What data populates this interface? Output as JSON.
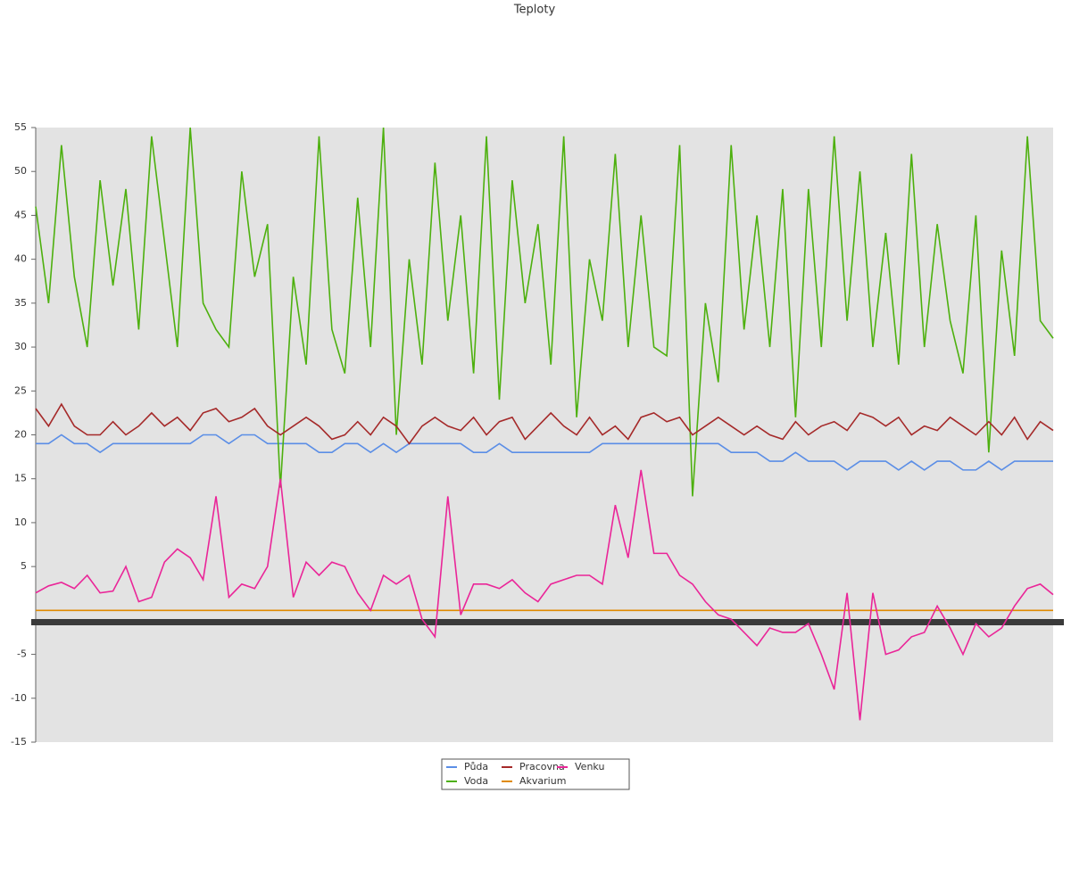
{
  "chart_data": {
    "type": "line",
    "title": "Teploty",
    "ylim": [
      -15,
      55
    ],
    "yticks": [
      -15,
      -10,
      -5,
      5,
      10,
      15,
      20,
      25,
      30,
      35,
      40,
      45,
      50,
      55
    ],
    "series": [
      {
        "name": "Půda",
        "color": "#5b8ee6",
        "values": [
          19,
          19,
          20,
          19,
          19,
          18,
          19,
          19,
          19,
          19,
          19,
          19,
          19,
          20,
          20,
          19,
          20,
          20,
          19,
          19,
          19,
          19,
          18,
          18,
          19,
          19,
          18,
          19,
          18,
          19,
          19,
          19,
          19,
          19,
          18,
          18,
          19,
          18,
          18,
          18,
          18,
          18,
          18,
          18,
          19,
          19,
          19,
          19,
          19,
          19,
          19,
          19,
          19,
          19,
          18,
          18,
          18,
          17,
          17,
          18,
          17,
          17,
          17,
          16,
          17,
          17,
          17,
          16,
          17,
          16,
          17,
          17,
          16,
          16,
          17,
          16,
          17,
          17,
          17,
          17
        ]
      },
      {
        "name": "Voda",
        "color": "#4db00e",
        "values": [
          46,
          35,
          53,
          38,
          30,
          49,
          37,
          48,
          32,
          54,
          42,
          30,
          55,
          35,
          32,
          30,
          50,
          38,
          44,
          14,
          38,
          28,
          54,
          32,
          27,
          47,
          30,
          55,
          20,
          40,
          28,
          51,
          33,
          45,
          27,
          54,
          24,
          49,
          35,
          44,
          28,
          54,
          22,
          40,
          33,
          52,
          30,
          45,
          30,
          29,
          53,
          13,
          35,
          26,
          53,
          32,
          45,
          30,
          48,
          22,
          48,
          30,
          54,
          33,
          50,
          30,
          43,
          28,
          52,
          30,
          44,
          33,
          27,
          45,
          18,
          41,
          29,
          54,
          33,
          31
        ]
      },
      {
        "name": "Pracovna",
        "color": "#a52a2a",
        "values": [
          23,
          21,
          23.5,
          21,
          20,
          20,
          21.5,
          20,
          21,
          22.5,
          21,
          22,
          20.5,
          22.5,
          23,
          21.5,
          22,
          23,
          21,
          20,
          21,
          22,
          21,
          19.5,
          20,
          21.5,
          20,
          22,
          21,
          19,
          21,
          22,
          21,
          20.5,
          22,
          20,
          21.5,
          22,
          19.5,
          21,
          22.5,
          21,
          20,
          22,
          20,
          21,
          19.5,
          22,
          22.5,
          21.5,
          22,
          20,
          21,
          22,
          21,
          20,
          21,
          20,
          19.5,
          21.5,
          20,
          21,
          21.5,
          20.5,
          22.5,
          22,
          21,
          22,
          20,
          21,
          20.5,
          22,
          21,
          20,
          21.5,
          20,
          22,
          19.5,
          21.5,
          20.5
        ]
      },
      {
        "name": "Akvarium",
        "color": "#e08a00",
        "values": [
          0,
          0,
          0,
          0,
          0,
          0,
          0,
          0,
          0,
          0,
          0,
          0,
          0,
          0,
          0,
          0,
          0,
          0,
          0,
          0,
          0,
          0,
          0,
          0,
          0,
          0,
          0,
          0,
          0,
          0,
          0,
          0,
          0,
          0,
          0,
          0,
          0,
          0,
          0,
          0,
          0,
          0,
          0,
          0,
          0,
          0,
          0,
          0,
          0,
          0,
          0,
          0,
          0,
          0,
          0,
          0,
          0,
          0,
          0,
          0,
          0,
          0,
          0,
          0,
          0,
          0,
          0,
          0,
          0,
          0,
          0,
          0,
          0,
          0,
          0,
          0,
          0,
          0,
          0,
          0
        ]
      },
      {
        "name": "Venku",
        "color": "#ea2598",
        "values": [
          2,
          2.8,
          3.2,
          2.5,
          4,
          2,
          2.2,
          5,
          1,
          1.5,
          5.5,
          7,
          6,
          3.5,
          13,
          1.5,
          3,
          2.5,
          5,
          15,
          1.5,
          5.5,
          4,
          5.5,
          5,
          2,
          0,
          4,
          3,
          4,
          -1,
          -3,
          13,
          -0.5,
          3,
          3,
          2.5,
          3.5,
          2,
          1,
          3,
          3.5,
          4,
          4,
          3,
          12,
          6,
          16,
          6.5,
          6.5,
          4,
          3,
          1,
          -0.5,
          -1,
          -2.5,
          -4,
          -2,
          -2.5,
          -2.5,
          -1.5,
          -5,
          -9,
          2,
          -12.5,
          2,
          -5,
          -4.5,
          -3,
          -2.5,
          0.5,
          -2,
          -5,
          -1.5,
          -3,
          -2,
          0.5,
          2.5,
          3,
          1.8
        ]
      }
    ]
  }
}
